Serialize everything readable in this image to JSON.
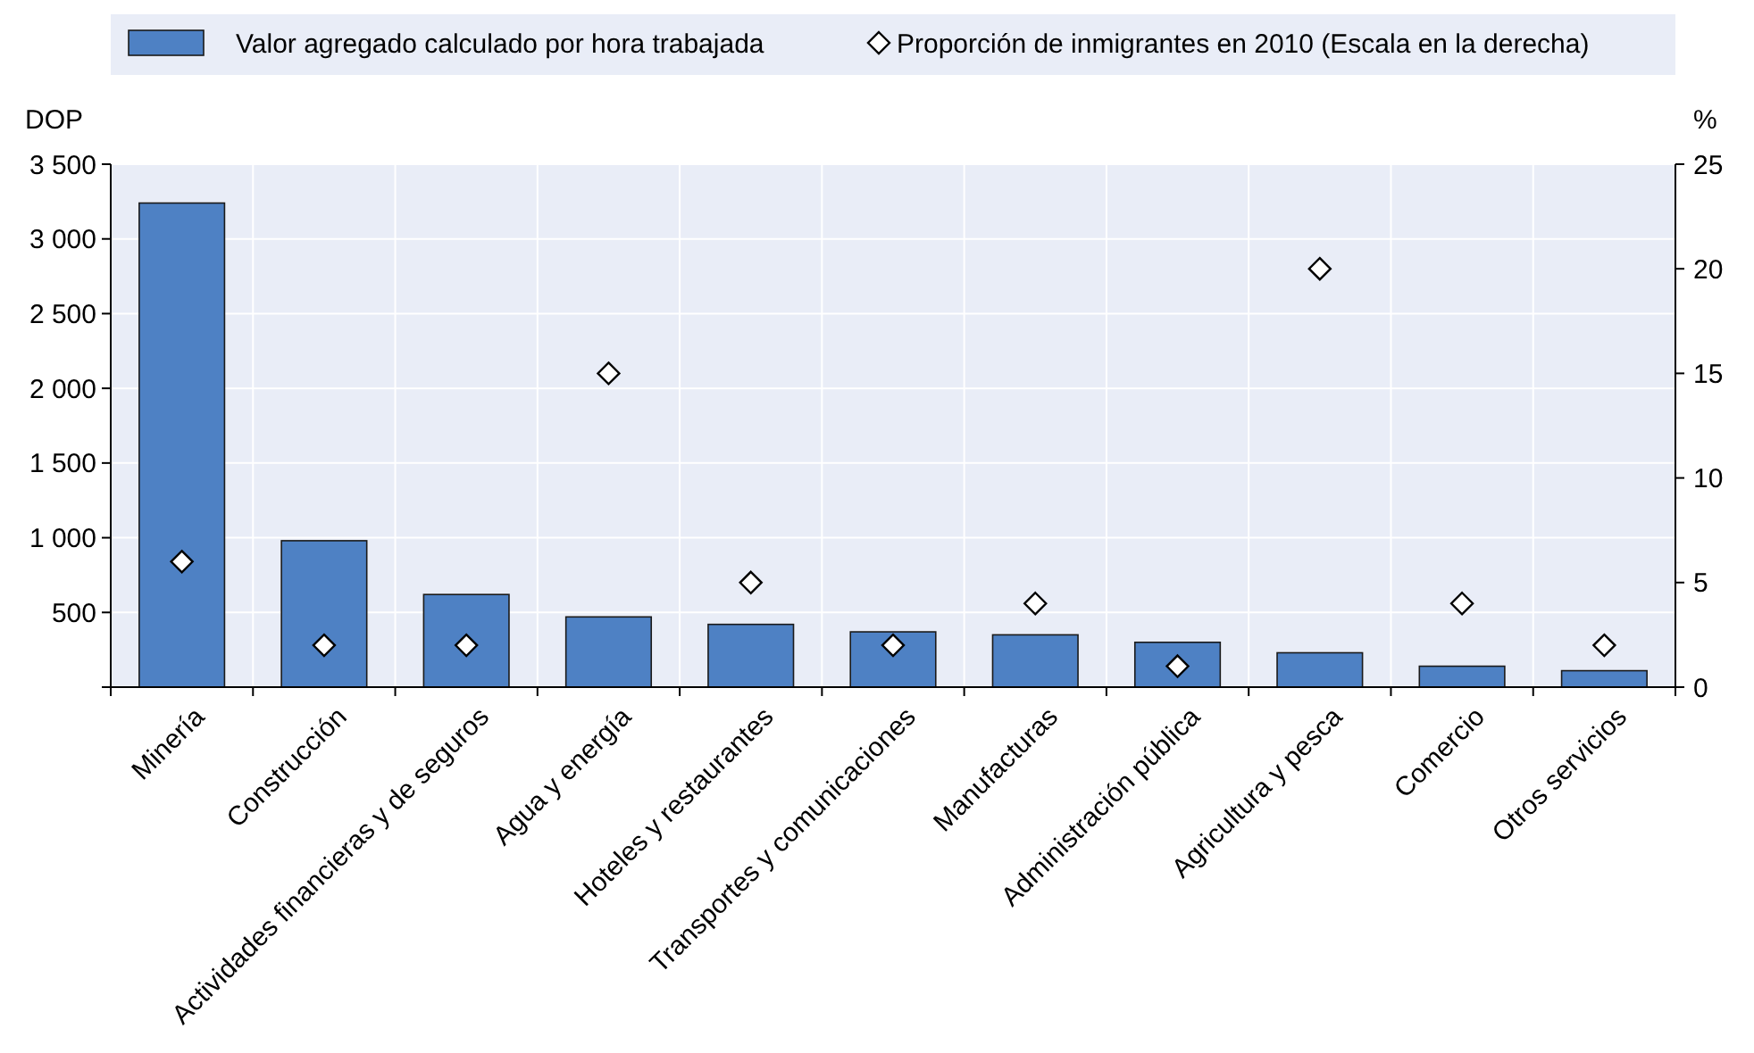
{
  "chart_data": {
    "type": "bar",
    "categories": [
      "Minería",
      "Construcción",
      "Actividades financieras y de seguros",
      "Agua y energía",
      "Hoteles y restaurantes",
      "Transportes y comunicaciones",
      "Manufacturas",
      "Administración pública",
      "Agricultura y pesca",
      "Comercio",
      "Otros servicios"
    ],
    "series": [
      {
        "name": "Valor agregado calculado por hora trabajada",
        "color": "#4e81c4",
        "values": [
          3240,
          980,
          620,
          470,
          420,
          370,
          350,
          300,
          230,
          140,
          110
        ]
      },
      {
        "name": "Proporción de inmigrantes en 2010 (Escala en la derecha)",
        "type": "scatter",
        "axis": "y2",
        "color": "#000000",
        "marker": "diamond",
        "values": [
          6,
          2,
          2,
          15,
          5,
          2,
          4,
          1,
          20,
          4,
          2
        ]
      }
    ],
    "ylabel": "DOP",
    "y2label": "%",
    "ylim": [
      0,
      3500
    ],
    "yticks": [
      {
        "value": 0,
        "label": null
      },
      500,
      {
        "value": 1000,
        "label": "1 000"
      },
      {
        "value": 1500,
        "label": "1 500"
      },
      {
        "value": 2000,
        "label": "2 000"
      },
      {
        "value": 2500,
        "label": "2 500"
      },
      {
        "value": 3000,
        "label": "3 000"
      },
      {
        "value": 3500,
        "label": "3 500"
      }
    ],
    "y2lim": [
      0,
      25
    ],
    "y2ticks": [
      0,
      5,
      10,
      15,
      20,
      25
    ],
    "grid": true,
    "legend": "top"
  }
}
